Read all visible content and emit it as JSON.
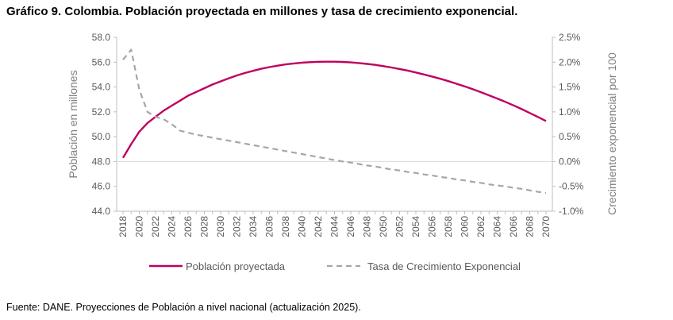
{
  "title": "Gráfico 9. Colombia. Población proyectada en millones y tasa de crecimiento exponencial.",
  "source": "Fuente: DANE. Proyecciones de Población a nivel nacional (actualización 2025).",
  "chart_data": {
    "type": "line",
    "x": [
      2018,
      2019,
      2020,
      2021,
      2022,
      2023,
      2024,
      2025,
      2026,
      2027,
      2028,
      2029,
      2030,
      2031,
      2032,
      2033,
      2034,
      2035,
      2036,
      2037,
      2038,
      2039,
      2040,
      2041,
      2042,
      2043,
      2044,
      2045,
      2046,
      2047,
      2048,
      2049,
      2050,
      2051,
      2052,
      2053,
      2054,
      2055,
      2056,
      2057,
      2058,
      2059,
      2060,
      2061,
      2062,
      2063,
      2064,
      2065,
      2066,
      2067,
      2068,
      2069,
      2070
    ],
    "x_tick_labels": [
      "2018",
      "2020",
      "2022",
      "2024",
      "2026",
      "2028",
      "2030",
      "2032",
      "2034",
      "2036",
      "2038",
      "2040",
      "2042",
      "2044",
      "2046",
      "2048",
      "2050",
      "2052",
      "2054",
      "2056",
      "2058",
      "2060",
      "2062",
      "2064",
      "2066",
      "2068",
      "2070"
    ],
    "ylabel_left": "Población en millones",
    "ylabel_right": "Crecimiento exponencial por 100",
    "ylim_left": [
      44.0,
      58.0
    ],
    "ylim_right": [
      -1.0,
      2.5
    ],
    "y_left_ticks": [
      "44.0",
      "46.0",
      "48.0",
      "50.0",
      "52.0",
      "54.0",
      "56.0",
      "58.0"
    ],
    "y_right_ticks": [
      "-1.0%",
      "-0.5%",
      "0.0%",
      "0.5%",
      "1.0%",
      "1.5%",
      "2.0%",
      "2.5%"
    ],
    "grid": false,
    "zero_line_right": 0.0,
    "legend_position": "bottom",
    "series": [
      {
        "name": "Población proyectada",
        "axis": "left",
        "color": "#c00060",
        "style": "solid",
        "values": [
          48.3,
          49.4,
          50.4,
          51.1,
          51.6,
          52.1,
          52.5,
          52.9,
          53.3,
          53.6,
          53.9,
          54.2,
          54.45,
          54.7,
          54.93,
          55.13,
          55.3,
          55.47,
          55.6,
          55.72,
          55.82,
          55.9,
          55.96,
          56.0,
          56.03,
          56.04,
          56.04,
          56.02,
          55.98,
          55.93,
          55.86,
          55.78,
          55.68,
          55.57,
          55.45,
          55.32,
          55.17,
          55.01,
          54.84,
          54.66,
          54.47,
          54.26,
          54.05,
          53.82,
          53.58,
          53.33,
          53.07,
          52.8,
          52.52,
          52.22,
          51.91,
          51.59,
          51.26
        ]
      },
      {
        "name": "Tasa de Crecimiento Exponencial",
        "axis": "right",
        "color": "#a6a6a6",
        "style": "dashed",
        "values": [
          2.05,
          2.25,
          1.45,
          1.0,
          0.9,
          0.85,
          0.75,
          0.62,
          0.58,
          0.54,
          0.51,
          0.48,
          0.45,
          0.42,
          0.39,
          0.36,
          0.33,
          0.3,
          0.27,
          0.24,
          0.21,
          0.18,
          0.15,
          0.12,
          0.09,
          0.06,
          0.03,
          0.0,
          -0.02,
          -0.05,
          -0.08,
          -0.1,
          -0.13,
          -0.16,
          -0.18,
          -0.21,
          -0.23,
          -0.26,
          -0.28,
          -0.31,
          -0.33,
          -0.36,
          -0.38,
          -0.41,
          -0.43,
          -0.46,
          -0.48,
          -0.5,
          -0.53,
          -0.55,
          -0.58,
          -0.61,
          -0.63
        ]
      }
    ]
  }
}
